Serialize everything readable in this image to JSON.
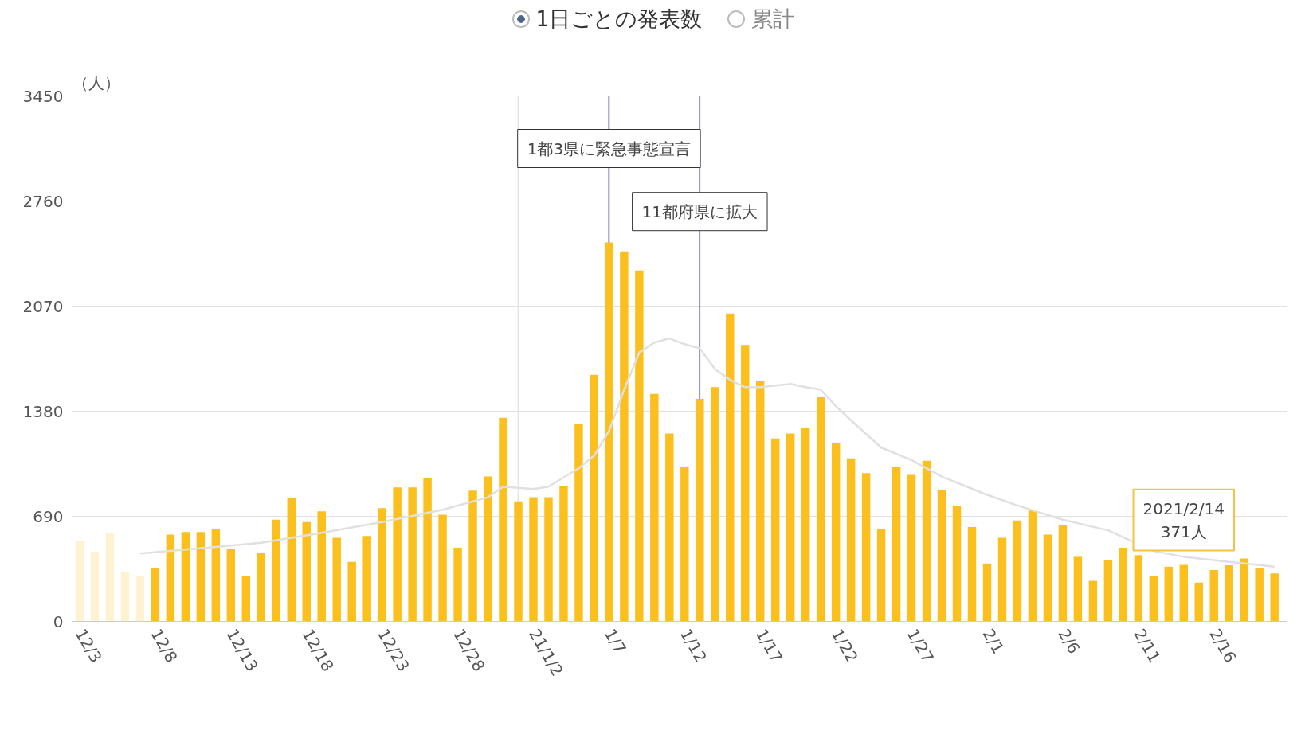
{
  "chart_data": {
    "type": "bar",
    "ylabel": "（人）",
    "x": [
      "2020-12-03",
      "2020-12-04",
      "2020-12-05",
      "2020-12-06",
      "2020-12-07",
      "2020-12-08",
      "2020-12-09",
      "2020-12-10",
      "2020-12-11",
      "2020-12-12",
      "2020-12-13",
      "2020-12-14",
      "2020-12-15",
      "2020-12-16",
      "2020-12-17",
      "2020-12-18",
      "2020-12-19",
      "2020-12-20",
      "2020-12-21",
      "2020-12-22",
      "2020-12-23",
      "2020-12-24",
      "2020-12-25",
      "2020-12-26",
      "2020-12-27",
      "2020-12-28",
      "2020-12-29",
      "2020-12-30",
      "2020-12-31",
      "2021-01-01",
      "2021-01-02",
      "2021-01-03",
      "2021-01-04",
      "2021-01-05",
      "2021-01-06",
      "2021-01-07",
      "2021-01-08",
      "2021-01-09",
      "2021-01-10",
      "2021-01-11",
      "2021-01-12",
      "2021-01-13",
      "2021-01-14",
      "2021-01-15",
      "2021-01-16",
      "2021-01-17",
      "2021-01-18",
      "2021-01-19",
      "2021-01-20",
      "2021-01-21",
      "2021-01-22",
      "2021-01-23",
      "2021-01-24",
      "2021-01-25",
      "2021-01-26",
      "2021-01-27",
      "2021-01-28",
      "2021-01-29",
      "2021-01-30",
      "2021-01-31",
      "2021-02-01",
      "2021-02-02",
      "2021-02-03",
      "2021-02-04",
      "2021-02-05",
      "2021-02-06",
      "2021-02-07",
      "2021-02-08",
      "2021-02-09",
      "2021-02-10",
      "2021-02-11",
      "2021-02-12",
      "2021-02-13",
      "2021-02-14",
      "2021-02-15",
      "2021-02-16",
      "2021-02-17",
      "2021-02-18",
      "2021-02-19",
      "2021-02-20"
    ],
    "series": [
      {
        "colors": [
          "#fdf3d3",
          "#fdf3d3",
          "#fdf3d3",
          "#fdf3d3",
          "#fdf3d3",
          "#fbc01e",
          "#fbc01e",
          "#fbc01e",
          "#fbc01e",
          "#fbc01e",
          "#fbc01e",
          "#fbc01e",
          "#fbc01e",
          "#fbc01e",
          "#fbc01e",
          "#fbc01e",
          "#fbc01e",
          "#fbc01e",
          "#fbc01e",
          "#fbc01e",
          "#fbc01e",
          "#fbc01e",
          "#fbc01e",
          "#fbc01e",
          "#fbc01e",
          "#fbc01e",
          "#fbc01e",
          "#fbc01e",
          "#fbc01e",
          "#fbc01e",
          "#fbc01e",
          "#fbc01e",
          "#fbc01e",
          "#fbc01e",
          "#fbc01e",
          "#fbc01e",
          "#fbc01e",
          "#fbc01e",
          "#fbc01e",
          "#fbc01e",
          "#fbc01e",
          "#fbc01e",
          "#fbc01e",
          "#fbc01e",
          "#fbc01e",
          "#fbc01e",
          "#fbc01e",
          "#fbc01e",
          "#fbc01e",
          "#fbc01e",
          "#fbc01e",
          "#fbc01e",
          "#fbc01e",
          "#fbc01e",
          "#fbc01e",
          "#fbc01e",
          "#fbc01e",
          "#fbc01e",
          "#fbc01e",
          "#fbc01e",
          "#fbc01e",
          "#fbc01e",
          "#fbc01e",
          "#fbc01e",
          "#fbc01e",
          "#fbc01e",
          "#fbc01e",
          "#fbc01e",
          "#fbc01e",
          "#fbc01e",
          "#fbc01e",
          "#fbc01e",
          "#fbc01e",
          "#fbc01e",
          "#fbc01e",
          "#fbc01e",
          "#fbc01e",
          "#fbc01e",
          "#fbc01e",
          "#fbc01e"
        ],
        "values": [
          527,
          456,
          581,
          321,
          299,
          348,
          570,
          587,
          587,
          608,
          473,
          299,
          451,
          668,
          810,
          652,
          723,
          549,
          391,
          560,
          744,
          880,
          880,
          940,
          701,
          484,
          858,
          951,
          1337,
          788,
          815,
          815,
          891,
          1299,
          1619,
          2488,
          2429,
          2304,
          1494,
          1233,
          1016,
          1461,
          1538,
          2021,
          1815,
          1576,
          1201,
          1233,
          1271,
          1472,
          1174,
          1070,
          973,
          608,
          1016,
          962,
          1054,
          864,
          755,
          619,
          380,
          549,
          663,
          728,
          570,
          630,
          424,
          266,
          402,
          484,
          435,
          299,
          359,
          371,
          255,
          337,
          369,
          413,
          348,
          315
        ]
      },
      {
        "type": "line",
        "color": "#e0e0e0",
        "x": [
          "2020-12-07",
          "2020-12-12",
          "2020-12-15",
          "2020-12-19",
          "2020-12-23",
          "2020-12-27",
          "2020-12-30",
          "2020-12-31",
          "2021-01-02",
          "2021-01-03",
          "2021-01-05",
          "2021-01-06",
          "2021-01-07",
          "2021-01-08",
          "2021-01-09",
          "2021-01-10",
          "2021-01-11",
          "2021-01-12",
          "2021-01-13",
          "2021-01-14",
          "2021-01-15",
          "2021-01-16",
          "2021-01-17",
          "2021-01-19",
          "2021-01-20",
          "2021-01-21",
          "2021-01-22",
          "2021-01-23",
          "2021-01-25",
          "2021-01-27",
          "2021-01-29",
          "2021-02-01",
          "2021-02-03",
          "2021-02-06",
          "2021-02-09",
          "2021-02-12",
          "2021-02-14",
          "2021-02-17",
          "2021-02-20"
        ],
        "values": [
          445,
          489,
          516,
          581,
          652,
          733,
          815,
          885,
          869,
          885,
          1005,
          1087,
          1250,
          1521,
          1766,
          1831,
          1858,
          1820,
          1793,
          1657,
          1586,
          1538,
          1538,
          1559,
          1538,
          1521,
          1413,
          1320,
          1141,
          1059,
          951,
          831,
          761,
          668,
          598,
          462,
          424,
          391,
          359
        ]
      }
    ],
    "xlim": [
      "2020-12-02T12:00",
      "2021-02-20T20:00"
    ],
    "xticks": [
      {
        "value": "2020-12-03",
        "label": "12/3"
      },
      {
        "value": "2020-12-08",
        "label": "12/8"
      },
      {
        "value": "2020-12-13",
        "label": "12/13"
      },
      {
        "value": "2020-12-18",
        "label": "12/18"
      },
      {
        "value": "2020-12-23",
        "label": "12/23"
      },
      {
        "value": "2020-12-28",
        "label": "12/28"
      },
      {
        "value": "2021-01-02",
        "label": "21/1/2"
      },
      {
        "value": "2021-01-07",
        "label": "1/7"
      },
      {
        "value": "2021-01-12",
        "label": "1/12"
      },
      {
        "value": "2021-01-17",
        "label": "1/17"
      },
      {
        "value": "2021-01-22",
        "label": "1/22"
      },
      {
        "value": "2021-01-27",
        "label": "1/27"
      },
      {
        "value": "2021-02-01",
        "label": "2/1"
      },
      {
        "value": "2021-02-06",
        "label": "2/6"
      },
      {
        "value": "2021-02-11",
        "label": "2/11"
      },
      {
        "value": "2021-02-16",
        "label": "2/16"
      }
    ],
    "ylim": [
      0,
      3450
    ],
    "yticks": [
      0,
      690,
      1380,
      2070,
      2760,
      3450
    ],
    "grid": "y",
    "ref_lines": [
      {
        "axis": "x",
        "value": "2021-01-01",
        "color": "#e6e6e6"
      },
      {
        "axis": "x",
        "value": "2021-01-07",
        "label": "1都3県に緊急事態宣言",
        "color": "#1a1a80"
      },
      {
        "axis": "x",
        "value": "2021-01-13",
        "label": "11都府県に拡大",
        "color": "#1a1a80"
      }
    ],
    "annotations": [
      "1日ごとの発表数",
      "累計",
      {
        "text": "2021/2/14\n371人",
        "x": "2021-02-14",
        "y": 371
      }
    ]
  }
}
